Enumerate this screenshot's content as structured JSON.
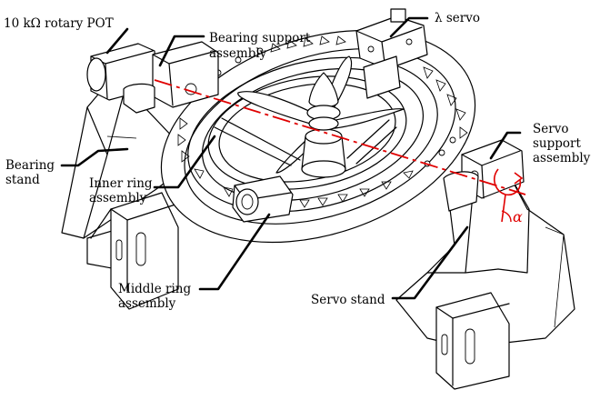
{
  "labels": {
    "pot": "10 kΩ rotary POT",
    "bearing_support_1": "Bearing support",
    "bearing_support_2": "assembly",
    "lambda_servo": "λ servo",
    "servo_support_1": "Servo",
    "servo_support_2": "support",
    "servo_support_3": "assembly",
    "bearing_stand_1": "Bearing",
    "bearing_stand_2": "stand",
    "inner_ring_1": "Inner ring",
    "inner_ring_2": "assembly",
    "middle_ring_1": "Middle ring",
    "middle_ring_2": "assembly",
    "servo_stand": "Servo stand",
    "alpha": "α"
  },
  "colors": {
    "axis_line": "#e00000",
    "ink": "#000000",
    "background": "#ffffff"
  }
}
